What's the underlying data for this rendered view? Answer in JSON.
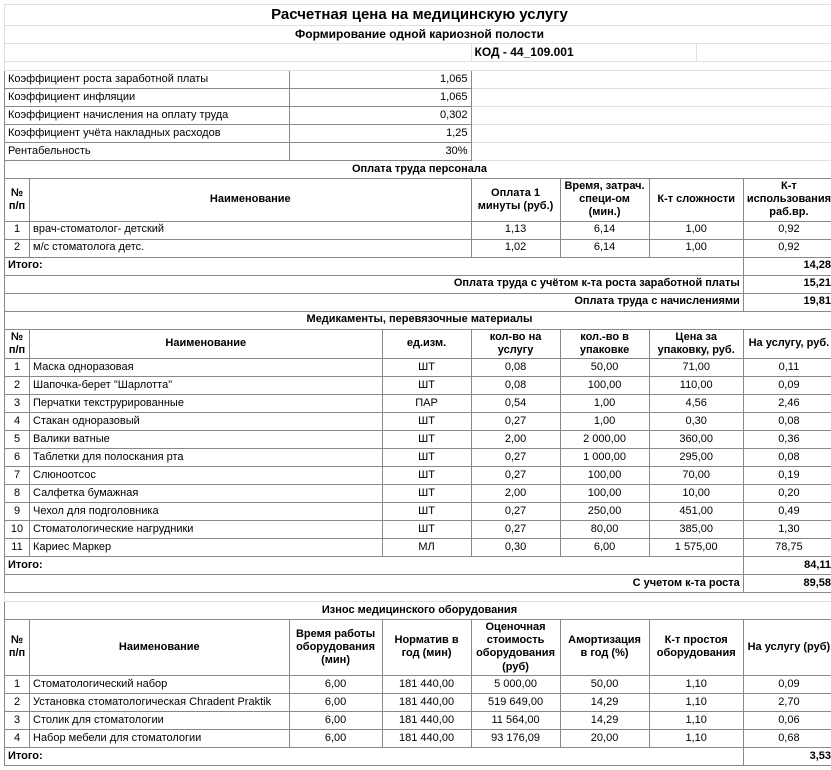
{
  "title": "Расчетная цена на медицинскую услугу",
  "subtitle": "Формирование одной кариозной полости",
  "kod": "КОД - 44_109.001",
  "coeffs": [
    {
      "label": "Коэффициент роста заработной платы",
      "val": "1,065"
    },
    {
      "label": "Коэффициент инфляции",
      "val": "1,065"
    },
    {
      "label": "Коэффициент начисления на оплату труда",
      "val": "0,302"
    },
    {
      "label": "Коэффициент учёта накладных расходов",
      "val": "1,25"
    },
    {
      "label": "Рентабельность",
      "val": "30%"
    }
  ],
  "sec1": {
    "title": "Оплата труда персонала",
    "head": [
      "№ п/п",
      "Наименование",
      "Оплата 1 минуты (руб.)",
      "Время, затрач. специ-ом (мин.)",
      "К-т сложности",
      "К-т использования раб.вр."
    ],
    "rows": [
      [
        "1",
        "врач-стоматолог- детский",
        "1,13",
        "6,14",
        "1,00",
        "0,92"
      ],
      [
        "2",
        "м/с стоматолога детс.",
        "1,02",
        "6,14",
        "1,00",
        "0,92"
      ]
    ],
    "totals": [
      [
        "Итого:",
        "14,28"
      ],
      [
        "Оплата труда с учётом к-та роста заработной платы",
        "15,21"
      ],
      [
        "Оплата труда с начислениями",
        "19,81"
      ]
    ]
  },
  "sec2": {
    "title": "Медикаменты, перевязочные материалы",
    "head": [
      "№ п/п",
      "Наименование",
      "ед.изм.",
      "кол-во на услугу",
      "кол.-во в упаковке",
      "Цена за упаковку, руб.",
      "На услугу, руб."
    ],
    "rows": [
      [
        "1",
        "Маска одноразовая",
        "ШТ",
        "0,08",
        "50,00",
        "71,00",
        "0,11"
      ],
      [
        "2",
        "Шапочка-берет \"Шарлотта\"",
        "ШТ",
        "0,08",
        "100,00",
        "110,00",
        "0,09"
      ],
      [
        "3",
        "Перчатки текструрированные",
        "ПАР",
        "0,54",
        "1,00",
        "4,56",
        "2,46"
      ],
      [
        "4",
        "Стакан одноразовый",
        "ШТ",
        "0,27",
        "1,00",
        "0,30",
        "0,08"
      ],
      [
        "5",
        "Валики ватные",
        "ШТ",
        "2,00",
        "2 000,00",
        "360,00",
        "0,36"
      ],
      [
        "6",
        "Таблетки для полоскания рта",
        "ШТ",
        "0,27",
        "1 000,00",
        "295,00",
        "0,08"
      ],
      [
        "7",
        "Слюноотсос",
        "ШТ",
        "0,27",
        "100,00",
        "70,00",
        "0,19"
      ],
      [
        "8",
        "Салфетка бумажная",
        "ШТ",
        "2,00",
        "100,00",
        "10,00",
        "0,20"
      ],
      [
        "9",
        "Чехол для подголовника",
        "ШТ",
        "0,27",
        "250,00",
        "451,00",
        "0,49"
      ],
      [
        "10",
        "Стоматологические нагрудники",
        "ШТ",
        "0,27",
        "80,00",
        "385,00",
        "1,30"
      ],
      [
        "11",
        "Кариес Маркер",
        "МЛ",
        "0,30",
        "6,00",
        "1 575,00",
        "78,75"
      ]
    ],
    "totals": [
      [
        "Итого:",
        "84,11"
      ],
      [
        "С учетом к-та роста",
        "89,58"
      ]
    ]
  },
  "sec3": {
    "title": "Износ медицинского оборудования",
    "head": [
      "№ п/п",
      "Наименование",
      "Время работы оборудования (мин)",
      "Норматив в год (мин)",
      "Оценочная стоимость оборудования (руб)",
      "Амортизация в год (%)",
      "К-т простоя оборудования",
      "На услугу (руб)"
    ],
    "rows": [
      [
        "1",
        "Стоматологический набор",
        "6,00",
        "181 440,00",
        "5 000,00",
        "50,00",
        "1,10",
        "0,09"
      ],
      [
        "2",
        "Установка стоматологическая Chradent Praktik",
        "6,00",
        "181 440,00",
        "519 649,00",
        "14,29",
        "1,10",
        "2,70"
      ],
      [
        "3",
        "Столик для стоматологии",
        "6,00",
        "181 440,00",
        "11 564,00",
        "14,29",
        "1,10",
        "0,06"
      ],
      [
        "4",
        "Набор мебели для стоматологии",
        "6,00",
        "181 440,00",
        "93 176,09",
        "20,00",
        "1,10",
        "0,68"
      ]
    ],
    "totals": [
      [
        "Итого:",
        "3,53"
      ]
    ]
  }
}
